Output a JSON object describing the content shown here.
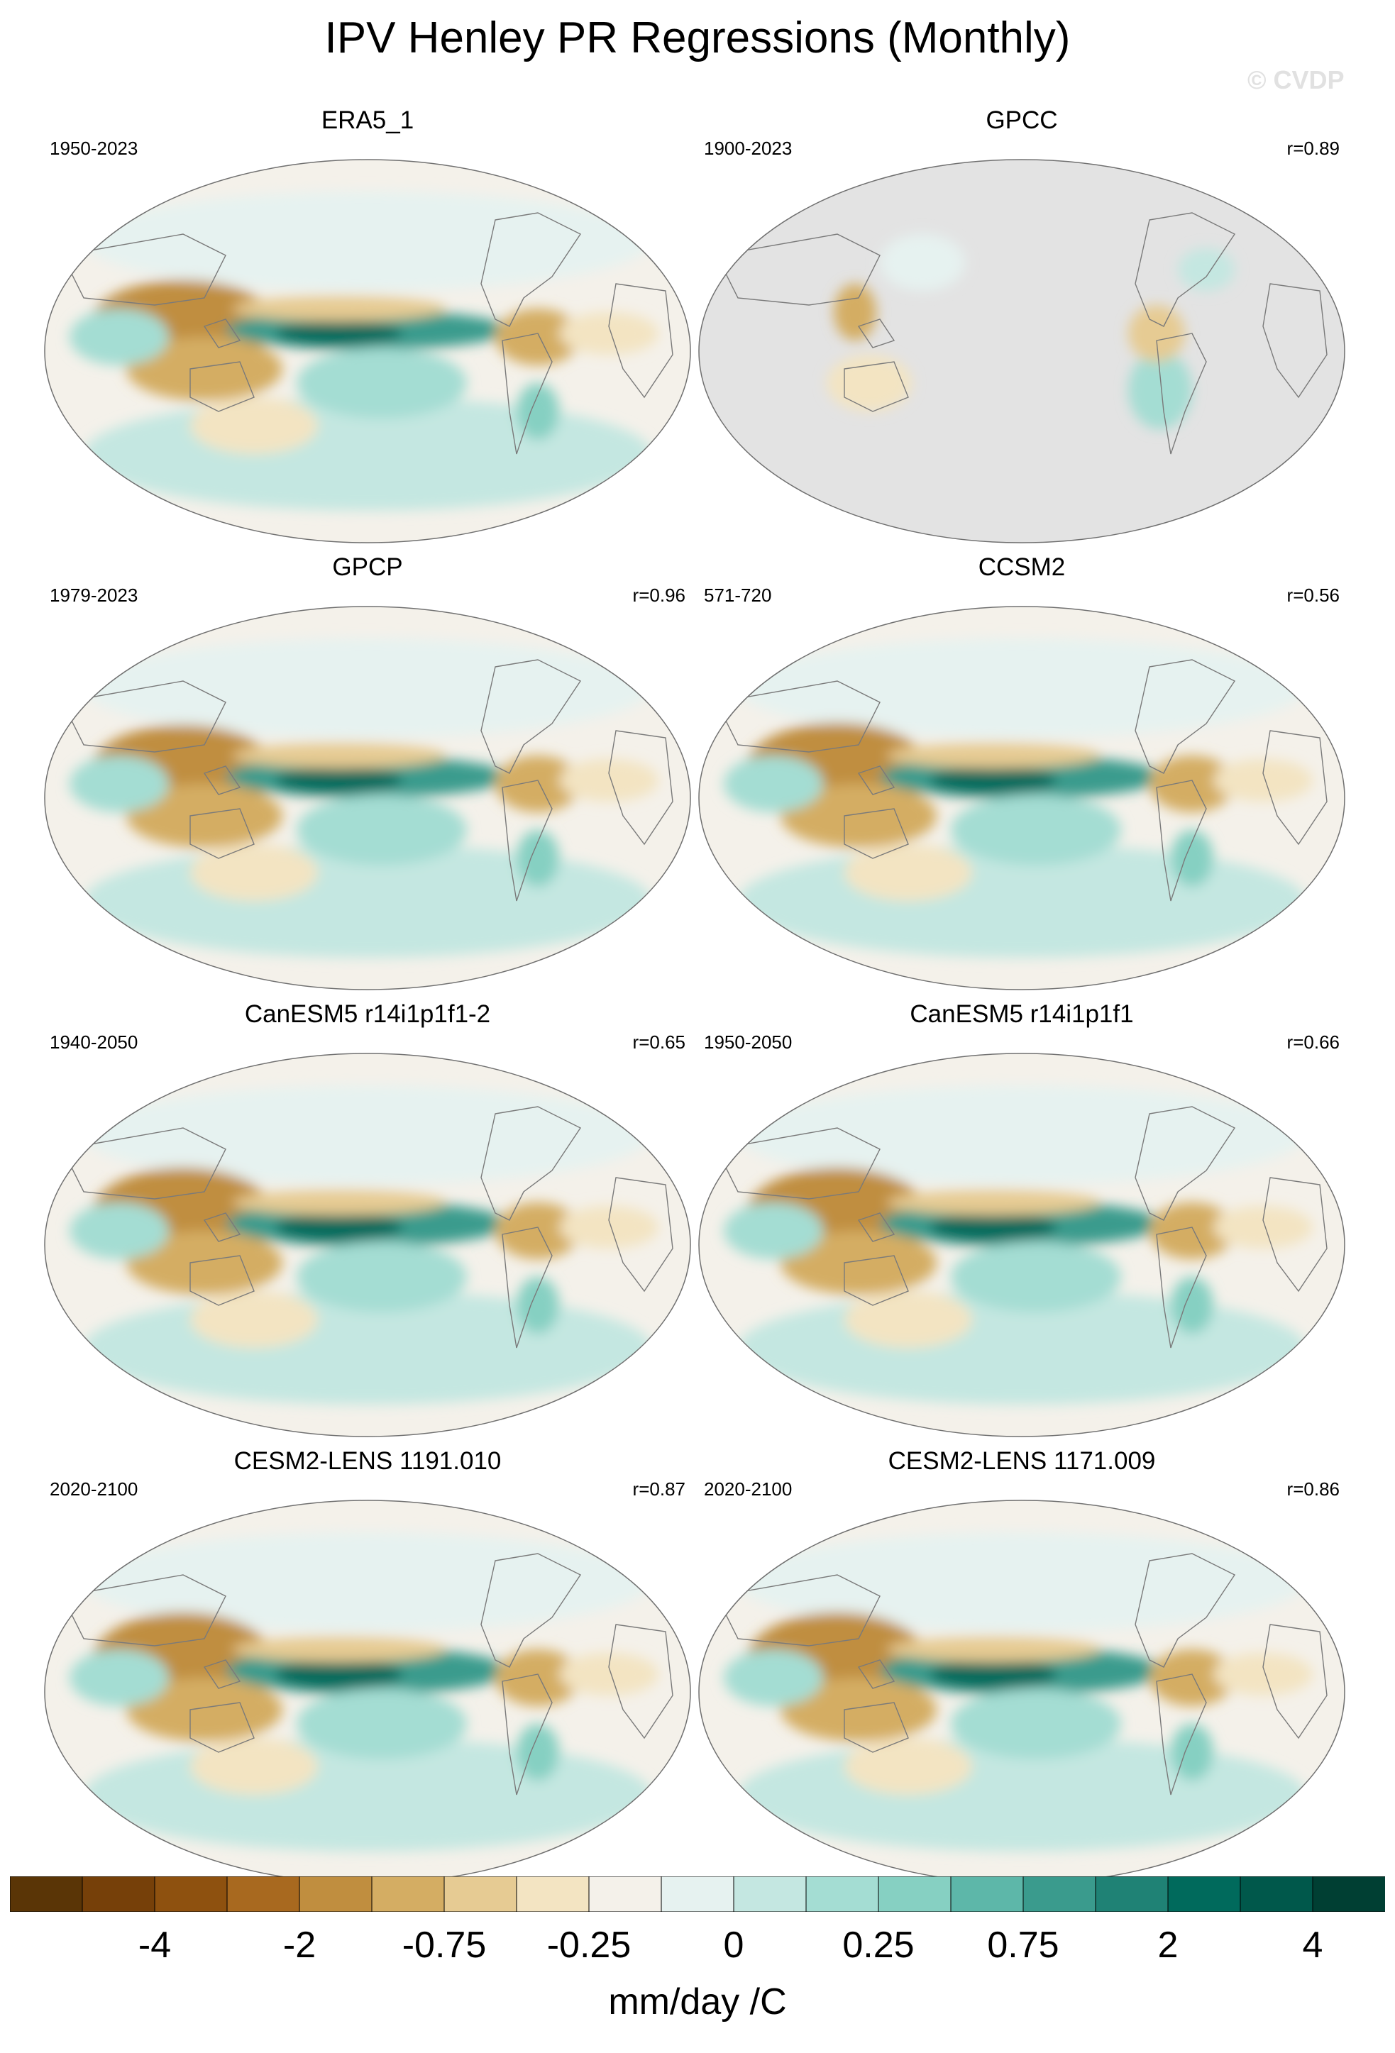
{
  "title": "IPV Henley PR Regressions (Monthly)",
  "watermark": "© CVDP",
  "panels": [
    {
      "name": "ERA5_1",
      "period": "1950-2023",
      "corr": "",
      "ocean_masked": false,
      "pattern": 1.0
    },
    {
      "name": "GPCC",
      "period": "1900-2023",
      "corr": "r=0.89",
      "ocean_masked": true,
      "pattern": 0.6
    },
    {
      "name": "GPCP",
      "period": "1979-2023",
      "corr": "r=0.96",
      "ocean_masked": false,
      "pattern": 1.05
    },
    {
      "name": "CCSM2",
      "period": "571-720",
      "corr": "r=0.56",
      "ocean_masked": false,
      "pattern": 1.1
    },
    {
      "name": "CanESM5 r14i1p1f1-2",
      "period": "1940-2050",
      "corr": "r=0.65",
      "ocean_masked": false,
      "pattern": 1.15
    },
    {
      "name": "CanESM5 r14i1p1f1",
      "period": "1950-2050",
      "corr": "r=0.66",
      "ocean_masked": false,
      "pattern": 1.15
    },
    {
      "name": "CESM2-LENS 1191.010",
      "period": "2020-2100",
      "corr": "r=0.87",
      "ocean_masked": false,
      "pattern": 1.2
    },
    {
      "name": "CESM2-LENS 1171.009",
      "period": "2020-2100",
      "corr": "r=0.86",
      "ocean_masked": false,
      "pattern": 1.2
    }
  ],
  "colorbar": {
    "colors": [
      "#5a3506",
      "#764009",
      "#8e510f",
      "#a8691f",
      "#c08e3f",
      "#d4ad63",
      "#e6cb93",
      "#f3e4c2",
      "#f4f1ea",
      "#e6f2f0",
      "#c4e7e1",
      "#a4ddd3",
      "#86d0c2",
      "#5db7a9",
      "#3a9b8d",
      "#1f8275",
      "#006a5c",
      "#00584b",
      "#003f33"
    ],
    "labels": [
      "-4",
      "-2",
      "-0.75",
      "-0.25",
      "0",
      "0.25",
      "0.75",
      "2",
      "4"
    ],
    "units": "mm/day /C"
  },
  "colors": {
    "land_mask": "#e3e3e3",
    "coast": "#7a7a7a",
    "border": "#707070"
  }
}
